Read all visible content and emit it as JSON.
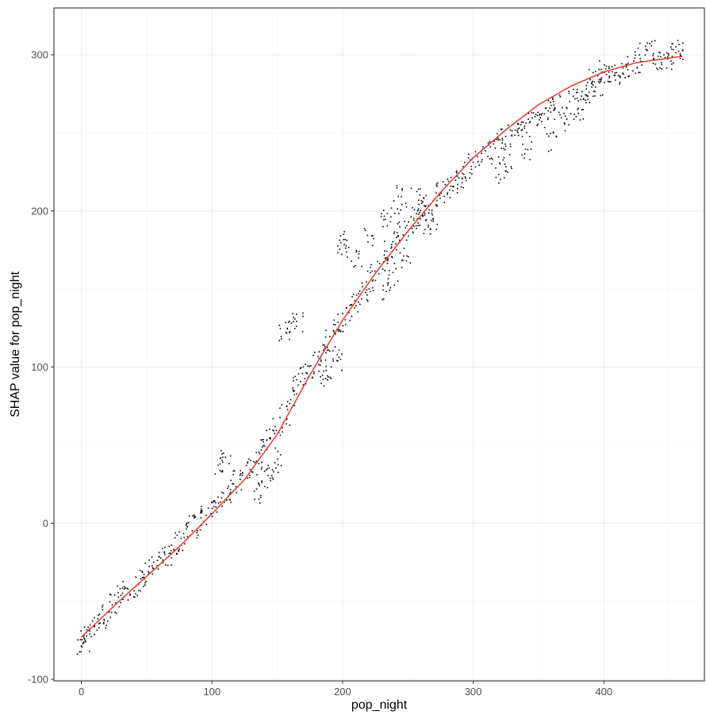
{
  "chart_data": {
    "type": "scatter",
    "title": "",
    "xlabel": "pop_night",
    "ylabel": "SHAP value for pop_night",
    "xlim": [
      -21,
      477
    ],
    "ylim": [
      -101,
      330
    ],
    "x_ticks": [
      0,
      100,
      200,
      300,
      400
    ],
    "y_ticks": [
      -100,
      0,
      100,
      200,
      300
    ],
    "x_tick_labels": [
      "0",
      "100",
      "200",
      "300",
      "400"
    ],
    "y_tick_labels": [
      "-100",
      "0",
      "100",
      "200",
      "300"
    ],
    "grid": true,
    "legend": "none",
    "colors": {
      "points": "#000000",
      "trend": "#e8392b",
      "grid": "#ebebeb",
      "panel_border": "#333333",
      "background": "#ffffff"
    },
    "series": [
      {
        "kind": "points",
        "values": [
          [
            0,
            -78
          ],
          [
            2,
            -75
          ],
          [
            5,
            -70
          ],
          [
            10,
            -66
          ],
          [
            15,
            -60
          ],
          [
            20,
            -57
          ],
          [
            25,
            -52
          ],
          [
            30,
            -47
          ],
          [
            35,
            -43
          ],
          [
            40,
            -40
          ],
          [
            45,
            -36
          ],
          [
            50,
            -32
          ],
          [
            55,
            -28
          ],
          [
            60,
            -25
          ],
          [
            65,
            -20
          ],
          [
            70,
            -16
          ],
          [
            75,
            -11
          ],
          [
            80,
            -6
          ],
          [
            85,
            -2
          ],
          [
            90,
            2
          ],
          [
            95,
            6
          ],
          [
            100,
            10
          ],
          [
            105,
            14
          ],
          [
            110,
            18
          ],
          [
            115,
            22
          ],
          [
            120,
            27
          ],
          [
            125,
            32
          ],
          [
            130,
            37
          ],
          [
            135,
            43
          ],
          [
            140,
            49
          ],
          [
            145,
            55
          ],
          [
            150,
            62
          ],
          [
            155,
            70
          ],
          [
            160,
            80
          ],
          [
            165,
            89
          ],
          [
            170,
            95
          ],
          [
            175,
            100
          ],
          [
            180,
            105
          ],
          [
            185,
            110
          ],
          [
            190,
            117
          ],
          [
            195,
            124
          ],
          [
            200,
            130
          ],
          [
            205,
            136
          ],
          [
            210,
            142
          ],
          [
            215,
            148
          ],
          [
            220,
            155
          ],
          [
            225,
            162
          ],
          [
            230,
            168
          ],
          [
            235,
            174
          ],
          [
            240,
            180
          ],
          [
            245,
            186
          ],
          [
            250,
            190
          ],
          [
            255,
            195
          ],
          [
            260,
            200
          ],
          [
            265,
            204
          ],
          [
            270,
            208
          ],
          [
            275,
            212
          ],
          [
            280,
            215
          ],
          [
            285,
            218
          ],
          [
            290,
            222
          ],
          [
            295,
            226
          ],
          [
            300,
            230
          ],
          [
            305,
            234
          ],
          [
            310,
            237
          ],
          [
            315,
            240
          ],
          [
            320,
            243
          ],
          [
            325,
            246
          ],
          [
            330,
            249
          ],
          [
            335,
            252
          ],
          [
            340,
            255
          ],
          [
            345,
            258
          ],
          [
            350,
            260
          ],
          [
            355,
            263
          ],
          [
            360,
            266
          ],
          [
            365,
            268
          ],
          [
            370,
            256
          ],
          [
            375,
            270
          ],
          [
            380,
            272
          ],
          [
            385,
            275
          ],
          [
            390,
            278
          ],
          [
            395,
            281
          ],
          [
            400,
            285
          ],
          [
            405,
            287
          ],
          [
            410,
            288
          ],
          [
            415,
            292
          ],
          [
            420,
            293
          ],
          [
            425,
            296
          ],
          [
            430,
            302
          ],
          [
            435,
            303
          ],
          [
            440,
            297
          ],
          [
            445,
            295
          ],
          [
            450,
            298
          ],
          [
            455,
            301
          ],
          [
            460,
            304
          ],
          [
            105,
            38
          ],
          [
            110,
            42
          ],
          [
            155,
            120
          ],
          [
            160,
            128
          ],
          [
            165,
            128
          ],
          [
            200,
            175
          ],
          [
            200,
            180
          ],
          [
            210,
            170
          ],
          [
            220,
            185
          ],
          [
            230,
            195
          ],
          [
            240,
            200
          ],
          [
            245,
            210
          ],
          [
            255,
            208
          ],
          [
            260,
            195
          ],
          [
            135,
            20
          ],
          [
            140,
            28
          ],
          [
            145,
            35
          ],
          [
            150,
            40
          ],
          [
            232,
            150
          ],
          [
            238,
            160
          ],
          [
            248,
            170
          ],
          [
            185,
            95
          ],
          [
            190,
            100
          ],
          [
            195,
            105
          ],
          [
            265,
            192
          ],
          [
            270,
            195
          ],
          [
            320,
            225
          ],
          [
            325,
            230
          ],
          [
            340,
            240
          ],
          [
            360,
            245
          ],
          [
            380,
            265
          ],
          [
            390,
            285
          ],
          [
            400,
            290
          ]
        ]
      },
      {
        "kind": "trend",
        "values": [
          [
            0,
            -73
          ],
          [
            25,
            -53
          ],
          [
            50,
            -34
          ],
          [
            75,
            -15
          ],
          [
            100,
            6
          ],
          [
            125,
            28
          ],
          [
            150,
            57
          ],
          [
            175,
            95
          ],
          [
            200,
            130
          ],
          [
            225,
            160
          ],
          [
            250,
            187
          ],
          [
            275,
            212
          ],
          [
            300,
            234
          ],
          [
            325,
            252
          ],
          [
            350,
            268
          ],
          [
            375,
            280
          ],
          [
            400,
            289
          ],
          [
            425,
            295
          ],
          [
            460,
            299
          ]
        ]
      }
    ]
  }
}
